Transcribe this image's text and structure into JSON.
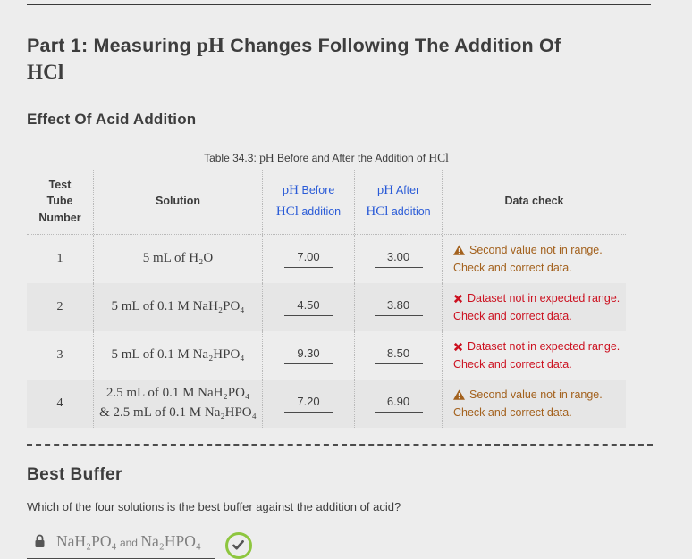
{
  "header": {
    "title_segments": [
      {
        "t": "Part 1: Measuring ",
        "f": "sans"
      },
      {
        "t": "pH",
        "f": "serif"
      },
      {
        "t": " Changes Following The Addition Of\n",
        "f": "sans"
      },
      {
        "t": "HCl",
        "f": "serif"
      }
    ]
  },
  "section": {
    "heading": "Effect Of Acid Addition"
  },
  "table": {
    "caption_segments": [
      {
        "t": "Table 34.3: ",
        "f": "sans"
      },
      {
        "t": "pH",
        "f": "serif"
      },
      {
        "t": " Before and After the Addition of ",
        "f": "sans"
      },
      {
        "t": "HCl",
        "f": "serif"
      }
    ],
    "headers": {
      "col1": "Test\nTube\nNumber",
      "col2": "Solution",
      "col3_line1": [
        {
          "t": "pH",
          "f": "serif"
        },
        {
          "t": " Before",
          "f": "sans"
        }
      ],
      "col3_line2": [
        {
          "t": "HCl",
          "f": "serif"
        },
        {
          "t": " addition",
          "f": "sans"
        }
      ],
      "col4_line1": [
        {
          "t": "pH",
          "f": "serif"
        },
        {
          "t": " After",
          "f": "sans"
        }
      ],
      "col4_line2": [
        {
          "t": "HCl",
          "f": "serif"
        },
        {
          "t": " addition",
          "f": "sans"
        }
      ],
      "col5": "Data check"
    },
    "rows": [
      {
        "tube": "1",
        "solution": "5 mL of H₂O",
        "ph_before": "7.00",
        "ph_after": "3.00",
        "check": {
          "type": "warning",
          "line1": "Second value not in range.",
          "line2": "Check and correct data."
        }
      },
      {
        "tube": "2",
        "solution": "5 mL of 0.1 M NaH₂PO₄",
        "ph_before": "4.50",
        "ph_after": "3.80",
        "check": {
          "type": "error",
          "line1": "Dataset not in expected range.",
          "line2": "Check and correct data."
        }
      },
      {
        "tube": "3",
        "solution": "5 mL of 0.1 M Na₂HPO₄",
        "ph_before": "9.30",
        "ph_after": "8.50",
        "check": {
          "type": "error",
          "line1": "Dataset not in expected range.",
          "line2": "Check and correct data."
        }
      },
      {
        "tube": "4",
        "solution": "2.5 mL of 0.1 M NaH₂PO₄\n& 2.5 mL of 0.1 M Na₂HPO₄",
        "ph_before": "7.20",
        "ph_after": "6.90",
        "check": {
          "type": "warning",
          "line1": "Second value not in range.",
          "line2": "Check and correct data."
        }
      }
    ]
  },
  "best_buffer": {
    "heading": "Best Buffer",
    "question": "Which of the four solutions is the best buffer against the addition of acid?",
    "answer_segments": [
      {
        "t": "NaH₂PO₄",
        "f": "serif"
      },
      {
        "t": " and ",
        "f": "small"
      },
      {
        "t": "Na₂HPO₄",
        "f": "serif"
      }
    ],
    "status": "correct"
  },
  "colors": {
    "accent_blue": "#2a5bd7",
    "warning": "#a3611d",
    "error": "#cc1120",
    "success_green": "#8ec63f"
  }
}
